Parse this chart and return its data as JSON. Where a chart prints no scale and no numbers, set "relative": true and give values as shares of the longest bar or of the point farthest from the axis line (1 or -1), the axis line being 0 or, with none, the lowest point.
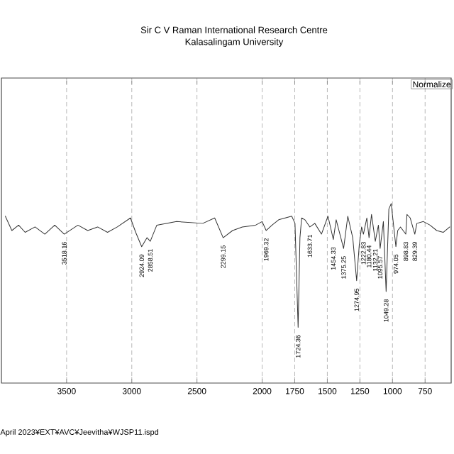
{
  "chart_data": {
    "type": "line",
    "title": "Sir C V Raman International Research Centre",
    "subtitle": "Kalasalingam University",
    "relative": true,
    "color": "#333333",
    "grid": "x",
    "xlim": [
      4000,
      550
    ],
    "xticks": [
      3500,
      3000,
      2500,
      2000,
      1750,
      1500,
      1250,
      1000,
      750
    ],
    "x": [
      3970,
      3920,
      3868,
      3818,
      3742,
      3667,
      3591,
      3518,
      3413,
      3338,
      3262,
      3186,
      3111,
      3010,
      2970,
      2924,
      2883,
      2858,
      2808,
      2656,
      2455,
      2364,
      2299,
      2227,
      2152,
      2050,
      2000,
      1969,
      1924,
      1873,
      1823,
      1773,
      1748,
      1724,
      1710,
      1697,
      1672,
      1634,
      1596,
      1545,
      1495,
      1454,
      1432,
      1375,
      1343,
      1305,
      1275,
      1255,
      1237,
      1223,
      1197,
      1180,
      1161,
      1132,
      1108,
      1095,
      1070,
      1049,
      1028,
      1010,
      974,
      960,
      939,
      898,
      889,
      864,
      829,
      813,
      763,
      712,
      661,
      611,
      561
    ],
    "values": [
      0.93,
      0.85,
      0.88,
      0.84,
      0.87,
      0.83,
      0.88,
      0.83,
      0.88,
      0.85,
      0.87,
      0.84,
      0.87,
      0.92,
      0.84,
      0.76,
      0.81,
      0.79,
      0.88,
      0.9,
      0.89,
      0.92,
      0.81,
      0.85,
      0.87,
      0.88,
      0.9,
      0.85,
      0.88,
      0.91,
      0.92,
      0.93,
      0.89,
      0.31,
      0.81,
      0.92,
      0.91,
      0.87,
      0.89,
      0.83,
      0.93,
      0.8,
      0.91,
      0.75,
      0.93,
      0.81,
      0.57,
      0.77,
      0.87,
      0.83,
      0.92,
      0.81,
      0.94,
      0.79,
      0.88,
      0.75,
      0.9,
      0.51,
      0.97,
      1.0,
      0.76,
      0.85,
      0.87,
      0.83,
      0.94,
      0.92,
      0.83,
      0.89,
      0.9,
      0.88,
      0.85,
      0.84,
      0.87
    ],
    "annotations": [
      "Normalize",
      "April 2023¥EXT¥AVC¥Jeevitha¥WJSP11.ispd",
      {
        "text": "3518.16",
        "x": 3518,
        "y": 0.83
      },
      {
        "text": "2924.09",
        "x": 2924,
        "y": 0.76
      },
      {
        "text": "2858.51",
        "x": 2858,
        "y": 0.79
      },
      {
        "text": "2299.15",
        "x": 2299,
        "y": 0.81
      },
      {
        "text": "1969.32",
        "x": 1969,
        "y": 0.85
      },
      {
        "text": "1724.36",
        "x": 1724,
        "y": 0.31
      },
      {
        "text": "1633.71",
        "x": 1634,
        "y": 0.87
      },
      {
        "text": "1454.33",
        "x": 1454,
        "y": 0.8
      },
      {
        "text": "1375.25",
        "x": 1375,
        "y": 0.75
      },
      {
        "text": "1274.95",
        "x": 1275,
        "y": 0.57
      },
      {
        "text": "1222.83",
        "x": 1223,
        "y": 0.83
      },
      {
        "text": "1180.44",
        "x": 1180,
        "y": 0.81
      },
      {
        "text": "1132.21",
        "x": 1132,
        "y": 0.79
      },
      {
        "text": "1095.57",
        "x": 1095,
        "y": 0.75
      },
      {
        "text": "1049.28",
        "x": 1049,
        "y": 0.51
      },
      {
        "text": "974.05",
        "x": 974,
        "y": 0.76
      },
      {
        "text": "898.83",
        "x": 898,
        "y": 0.83
      },
      {
        "text": "829.39",
        "x": 829,
        "y": 0.83
      }
    ]
  }
}
